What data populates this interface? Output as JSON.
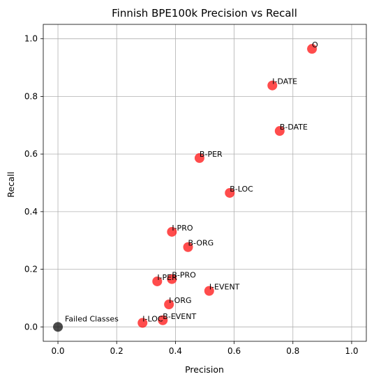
{
  "chart_data": {
    "type": "scatter",
    "title": "Finnish BPE100k Precision vs Recall",
    "xlabel": "Precision",
    "ylabel": "Recall",
    "xlim": [
      -0.05,
      1.05
    ],
    "ylim": [
      -0.05,
      1.05
    ],
    "xticks": [
      0.0,
      0.2,
      0.4,
      0.6,
      0.8,
      1.0
    ],
    "yticks": [
      0.0,
      0.2,
      0.4,
      0.6,
      0.8,
      1.0
    ],
    "xtick_labels": [
      "0.0",
      "0.2",
      "0.4",
      "0.6",
      "0.8",
      "1.0"
    ],
    "ytick_labels": [
      "0.0",
      "0.2",
      "0.4",
      "0.6",
      "0.8",
      "1.0"
    ],
    "grid": true,
    "colors": {
      "point": "#ff0000",
      "failed": "#000000",
      "grid": "#b0b0b0"
    },
    "points": [
      {
        "label": "O",
        "x": 0.865,
        "y": 0.965
      },
      {
        "label": "I-DATE",
        "x": 0.73,
        "y": 0.838
      },
      {
        "label": "B-DATE",
        "x": 0.755,
        "y": 0.68
      },
      {
        "label": "B-PER",
        "x": 0.482,
        "y": 0.586
      },
      {
        "label": "B-LOC",
        "x": 0.585,
        "y": 0.465
      },
      {
        "label": "I-PRO",
        "x": 0.388,
        "y": 0.33
      },
      {
        "label": "B-ORG",
        "x": 0.443,
        "y": 0.277
      },
      {
        "label": "I-PER",
        "x": 0.338,
        "y": 0.158
      },
      {
        "label": "B-PRO",
        "x": 0.388,
        "y": 0.166
      },
      {
        "label": "I-EVENT",
        "x": 0.515,
        "y": 0.125
      },
      {
        "label": "I-ORG",
        "x": 0.378,
        "y": 0.078
      },
      {
        "label": "B-EVENT",
        "x": 0.357,
        "y": 0.023
      },
      {
        "label": "I-LOC",
        "x": 0.288,
        "y": 0.014
      }
    ],
    "failed": {
      "label": "Failed Classes",
      "x": 0.0,
      "y": 0.0
    }
  }
}
